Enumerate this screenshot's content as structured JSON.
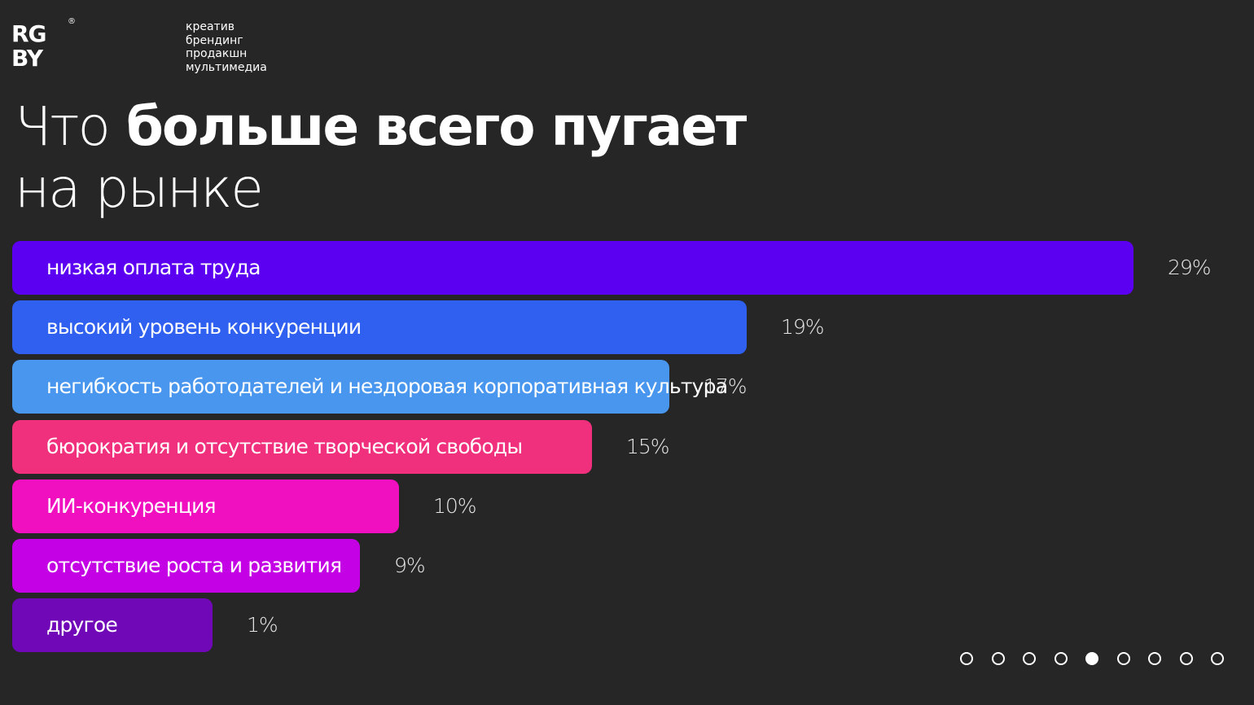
{
  "brand": {
    "logo_line1": "RG",
    "logo_line2": "BY",
    "logo_mark": "®",
    "tagline": [
      "креатив",
      "брендинг",
      "продакшн",
      "мультимедиа"
    ]
  },
  "chart_data": {
    "type": "bar",
    "orientation": "horizontal",
    "title_light": "Что",
    "title_bold": "больше всего пугает",
    "title_line2": "на рынке",
    "value_suffix": "%",
    "categories": [
      "низкая оплата труда",
      "высокий уровень конкуренции",
      "негибкость работодателей и нездоровая корпоративная культура",
      "бюрократия и отсутствие творческой свободы",
      "ИИ-конкуренция",
      "отсутствие роста и развития",
      "другое"
    ],
    "values": [
      29,
      19,
      17,
      15,
      10,
      9,
      1
    ],
    "value_labels": [
      "29%",
      "19%",
      "17%",
      "15%",
      "10%",
      "9%",
      "1%"
    ],
    "colors": [
      "#5c00f2",
      "#3060f0",
      "#4896ee",
      "#f0307c",
      "#f010c0",
      "#c400e4",
      "#7008b8"
    ],
    "grid": false,
    "legend": "none"
  },
  "pagination": {
    "total": 9,
    "active": 5
  }
}
